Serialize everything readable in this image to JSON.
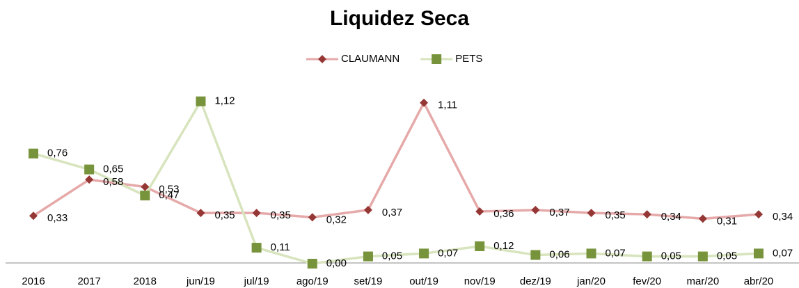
{
  "chart_data": {
    "type": "line",
    "title": "Liquidez Seca",
    "categories": [
      "2016",
      "2017",
      "2018",
      "jun/19",
      "jul/19",
      "ago/19",
      "set/19",
      "out/19",
      "nov/19",
      "dez/19",
      "jan/20",
      "fev/20",
      "mar/20",
      "abr/20"
    ],
    "series": [
      {
        "name": "CLAUMANN",
        "color": "#e6a9a9",
        "marker_color": "#953735",
        "marker": "diamond",
        "values": [
          0.33,
          0.58,
          0.53,
          0.35,
          0.35,
          0.32,
          0.37,
          1.11,
          0.36,
          0.37,
          0.35,
          0.34,
          0.31,
          0.34
        ],
        "value_labels": [
          "0,33",
          "0,58",
          "0,53",
          "0,35",
          "0,35",
          "0,32",
          "0,37",
          "1,11",
          "0,36",
          "0,37",
          "0,35",
          "0,34",
          "0,31",
          "0,34"
        ]
      },
      {
        "name": "PETS",
        "color": "#d7e4bd",
        "marker_color": "#77933c",
        "marker": "square",
        "values": [
          0.76,
          0.65,
          0.47,
          1.12,
          0.11,
          0.0,
          0.05,
          0.07,
          0.12,
          0.06,
          0.07,
          0.05,
          0.05,
          0.07
        ],
        "value_labels": [
          "0,76",
          "0,65",
          "0,47",
          "1,12",
          "0,11",
          "0,00",
          "0,05",
          "0,07",
          "0,12",
          "0,06",
          "0,07",
          "0,05",
          "0,05",
          "0,07"
        ]
      }
    ],
    "ylim": [
      0,
      1.2
    ],
    "legend": "top"
  }
}
